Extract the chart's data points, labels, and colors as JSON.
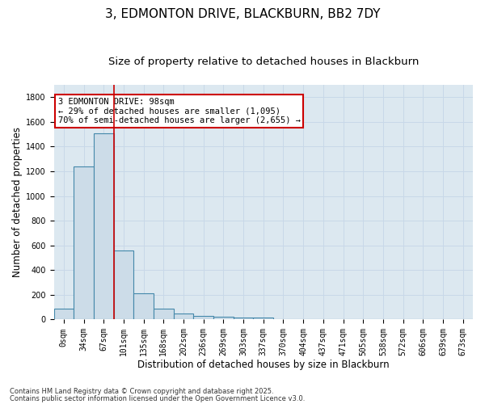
{
  "title_line1": "3, EDMONTON DRIVE, BLACKBURN, BB2 7DY",
  "title_line2": "Size of property relative to detached houses in Blackburn",
  "xlabel": "Distribution of detached houses by size in Blackburn",
  "ylabel": "Number of detached properties",
  "categories": [
    "0sqm",
    "34sqm",
    "67sqm",
    "101sqm",
    "135sqm",
    "168sqm",
    "202sqm",
    "236sqm",
    "269sqm",
    "303sqm",
    "337sqm",
    "370sqm",
    "404sqm",
    "437sqm",
    "471sqm",
    "505sqm",
    "538sqm",
    "572sqm",
    "606sqm",
    "639sqm",
    "673sqm"
  ],
  "bar_values": [
    90,
    1240,
    1510,
    560,
    210,
    85,
    50,
    28,
    20,
    16,
    14,
    4,
    2,
    1,
    0,
    0,
    0,
    0,
    0,
    0,
    0
  ],
  "bar_color": "#ccdce8",
  "bar_edge_color": "#4488aa",
  "property_line_color": "#cc0000",
  "annotation_text": "3 EDMONTON DRIVE: 98sqm\n← 29% of detached houses are smaller (1,095)\n70% of semi-detached houses are larger (2,655) →",
  "annotation_box_color": "#ffffff",
  "annotation_box_edge_color": "#cc0000",
  "ylim": [
    0,
    1900
  ],
  "yticks": [
    0,
    200,
    400,
    600,
    800,
    1000,
    1200,
    1400,
    1600,
    1800
  ],
  "grid_color": "#c8d8e8",
  "bg_color": "#dce8f0",
  "footer_line1": "Contains HM Land Registry data © Crown copyright and database right 2025.",
  "footer_line2": "Contains public sector information licensed under the Open Government Licence v3.0.",
  "title_fontsize": 11,
  "subtitle_fontsize": 9.5,
  "axis_label_fontsize": 8.5,
  "tick_fontsize": 7,
  "annotation_fontsize": 7.5,
  "footer_fontsize": 6
}
